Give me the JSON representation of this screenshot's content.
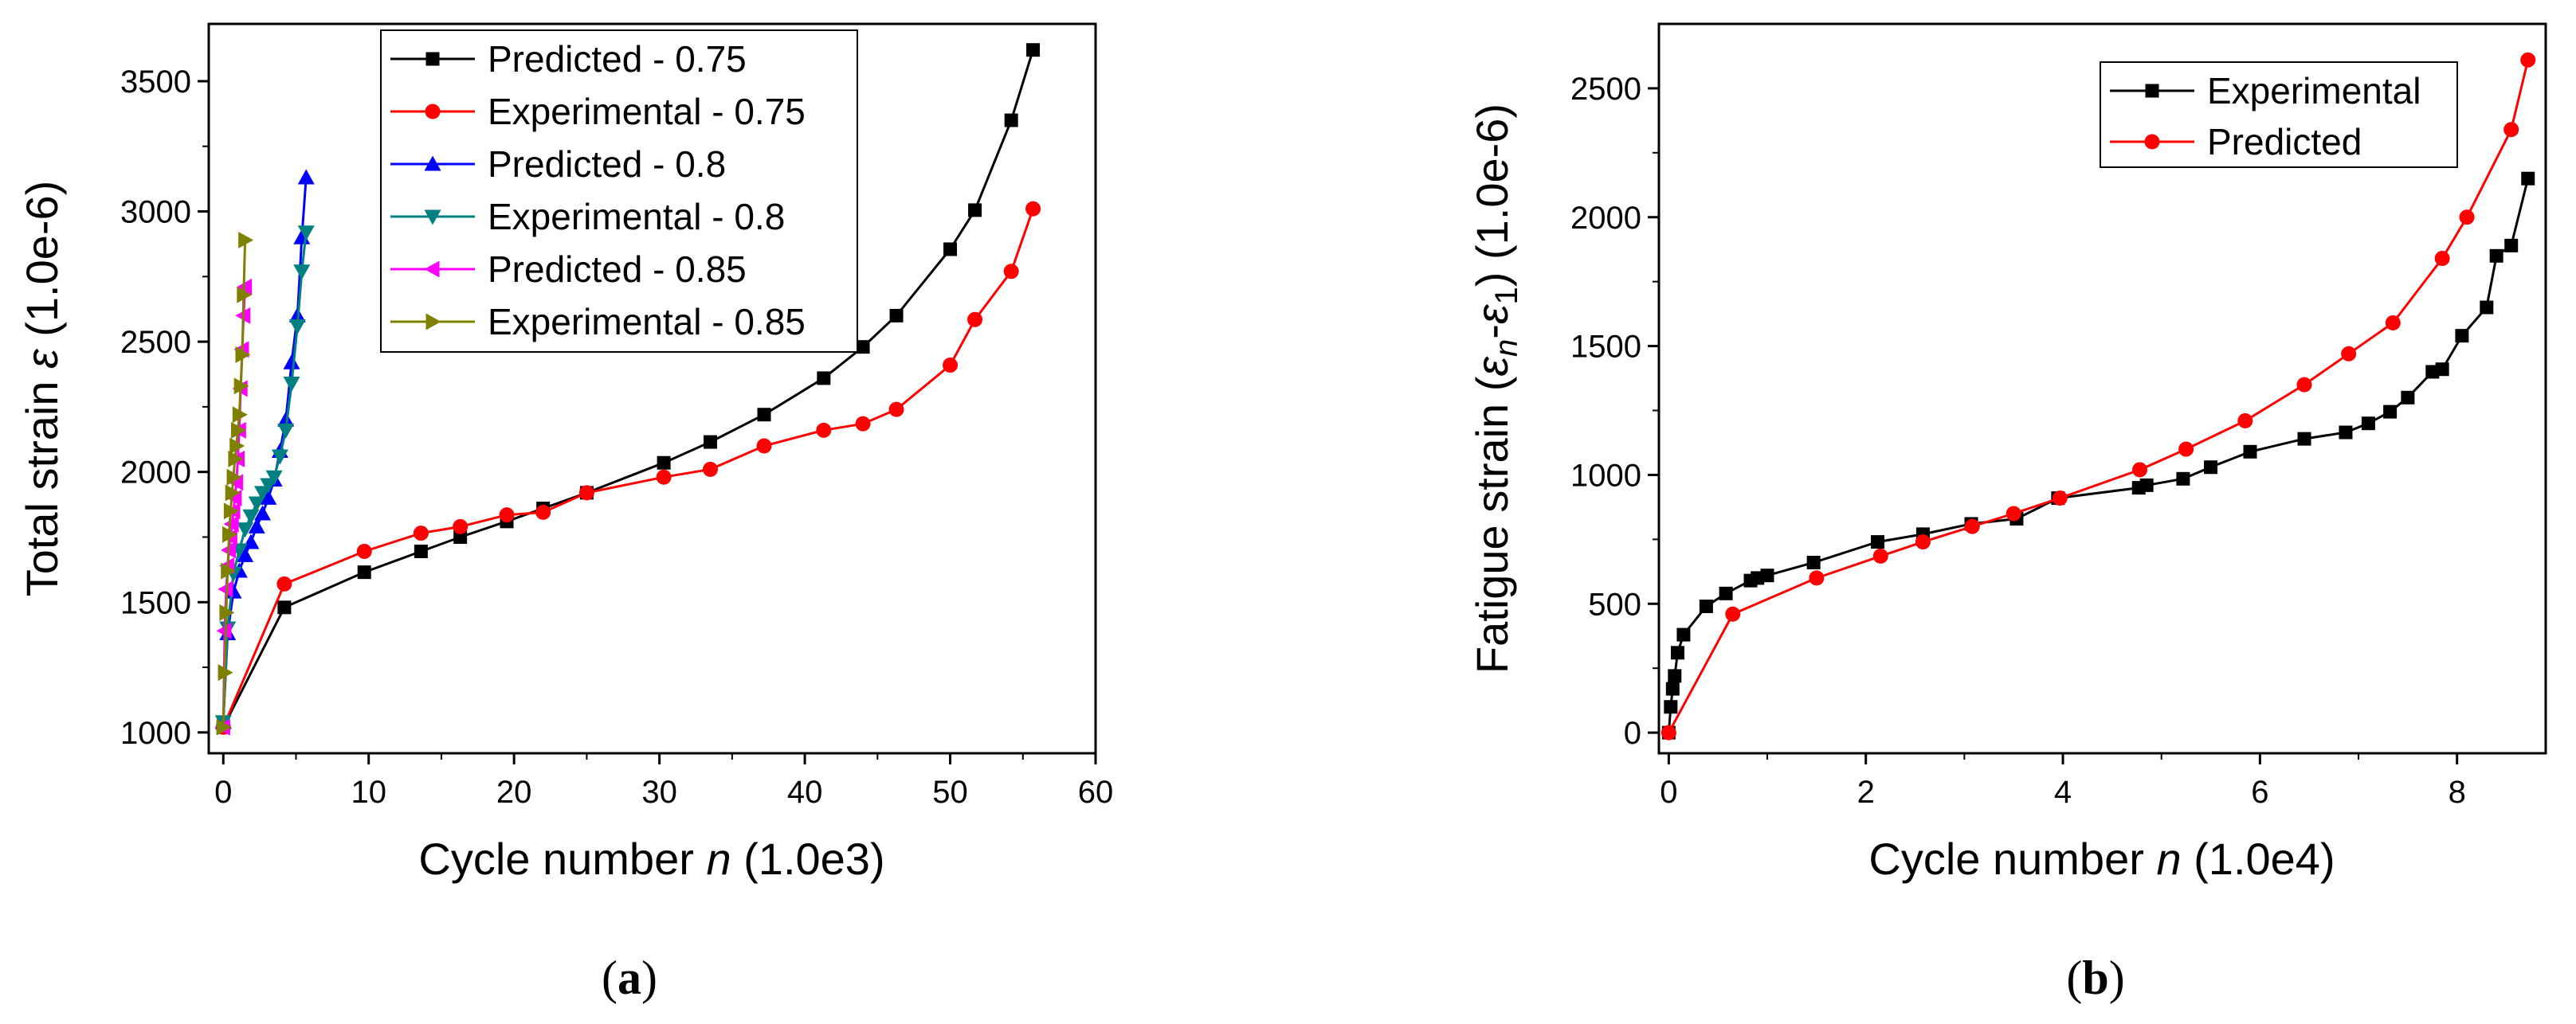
{
  "figure": {
    "panel_a_caption": "(a)",
    "panel_b_caption": "(b)"
  },
  "chart_data": [
    {
      "type": "line",
      "panel": "a",
      "title": "",
      "xlabel": "Cycle number n (1.0e3)",
      "xlabel_parts": {
        "pre": "Cycle number ",
        "var": "n",
        "post": " (1.0e3)"
      },
      "ylabel": "Total strain ε (1.0e-6)",
      "ylabel_parts": {
        "pre": "Total strain ",
        "var": "ε",
        "post": " (1.0e-6)"
      },
      "xlim": [
        -1,
        60
      ],
      "ylim": [
        920,
        3720
      ],
      "xticks": [
        0,
        10,
        20,
        30,
        40,
        50,
        60
      ],
      "xtick_labels": [
        "0",
        "10",
        "20",
        "30",
        "40",
        "50",
        "60"
      ],
      "yticks": [
        1000,
        1500,
        2000,
        2500,
        3000,
        3500
      ],
      "ytick_labels": [
        "1000",
        "1500",
        "2000",
        "2500",
        "3000",
        "3500"
      ],
      "legend_position": "top-center",
      "grid": false,
      "series": [
        {
          "name": "Predicted - 0.75",
          "color": "#000000",
          "marker": "square",
          "x": [
            0,
            4.2,
            9.7,
            13.6,
            16.3,
            19.5,
            22,
            25,
            30.3,
            33.5,
            37.2,
            41.3,
            44,
            46.3,
            50,
            51.7,
            54.2,
            55.7
          ],
          "y": [
            1020,
            1480,
            1615,
            1695,
            1750,
            1810,
            1860,
            1920,
            2035,
            2115,
            2220,
            2360,
            2480,
            2600,
            2855,
            3005,
            3350,
            3620
          ]
        },
        {
          "name": "Experimental - 0.75",
          "color": "#ff0000",
          "marker": "circle",
          "x": [
            0,
            4.2,
            9.7,
            13.6,
            16.3,
            19.5,
            22,
            25,
            30.3,
            33.5,
            37.2,
            41.3,
            44,
            46.3,
            50,
            51.7,
            54.2,
            55.7
          ],
          "y": [
            1020,
            1570,
            1695,
            1765,
            1790,
            1835,
            1845,
            1920,
            1980,
            2010,
            2100,
            2160,
            2185,
            2240,
            2410,
            2585,
            2770,
            3010
          ]
        },
        {
          "name": "Predicted - 0.8",
          "color": "#0000ff",
          "marker": "triangle-up",
          "x": [
            0,
            0.3,
            0.7,
            1.1,
            1.5,
            1.9,
            2.3,
            2.7,
            3.1,
            3.5,
            3.9,
            4.3,
            4.7,
            5.1,
            5.4,
            5.7
          ],
          "y": [
            1040,
            1380,
            1540,
            1620,
            1680,
            1730,
            1790,
            1840,
            1900,
            1970,
            2080,
            2200,
            2420,
            2600,
            2900,
            3130
          ]
        },
        {
          "name": "Experimental - 0.8",
          "color": "#008080",
          "marker": "triangle-down",
          "x": [
            0,
            0.3,
            0.7,
            1.1,
            1.5,
            1.9,
            2.3,
            2.7,
            3.1,
            3.5,
            3.9,
            4.3,
            4.7,
            5.1,
            5.4,
            5.7
          ],
          "y": [
            1040,
            1400,
            1610,
            1700,
            1780,
            1830,
            1880,
            1920,
            1950,
            1980,
            2060,
            2160,
            2340,
            2560,
            2770,
            2920
          ]
        },
        {
          "name": "Predicted - 0.85",
          "color": "#ff00ff",
          "marker": "triangle-left",
          "x": [
            0,
            0.1,
            0.2,
            0.3,
            0.4,
            0.5,
            0.6,
            0.7,
            0.8,
            0.9,
            1.0,
            1.1,
            1.2,
            1.3,
            1.4,
            1.5
          ],
          "y": [
            1020,
            1390,
            1550,
            1640,
            1700,
            1750,
            1800,
            1850,
            1900,
            1960,
            2050,
            2160,
            2320,
            2470,
            2600,
            2710
          ]
        },
        {
          "name": "Experimental - 0.85",
          "color": "#808000",
          "marker": "triangle-right",
          "x": [
            0,
            0.1,
            0.2,
            0.3,
            0.4,
            0.5,
            0.6,
            0.7,
            0.8,
            0.9,
            1.0,
            1.1,
            1.2,
            1.3,
            1.4,
            1.5
          ],
          "y": [
            1020,
            1230,
            1460,
            1620,
            1760,
            1850,
            1920,
            1980,
            2050,
            2100,
            2160,
            2220,
            2330,
            2450,
            2680,
            2890
          ]
        }
      ]
    },
    {
      "type": "line",
      "panel": "b",
      "title": "",
      "xlabel": "Cycle number n (1.0e4)",
      "xlabel_parts": {
        "pre": "Cycle number ",
        "var": "n",
        "post": " (1.0e4)"
      },
      "ylabel": "Fatigue strain (εn-ε1) (1.0e-6)",
      "ylabel_parts": {
        "pre": "Fatigue strain (",
        "var1": "ε",
        "sub1": "n",
        "mid": "-",
        "var2": "ε",
        "sub2": "1",
        "post": ") (1.0e-6)"
      },
      "xlim": [
        -0.1,
        8.9
      ],
      "ylim": [
        -80,
        2750
      ],
      "xticks": [
        0,
        2,
        4,
        6,
        8
      ],
      "xtick_labels": [
        "0",
        "2",
        "4",
        "6",
        "8"
      ],
      "yticks": [
        0,
        500,
        1000,
        1500,
        2000,
        2500
      ],
      "ytick_labels": [
        "0",
        "500",
        "1000",
        "1500",
        "2000",
        "2500"
      ],
      "legend_position": "top-right",
      "grid": false,
      "series": [
        {
          "name": "Experimental",
          "color": "#000000",
          "marker": "square",
          "x": [
            0,
            0.02,
            0.04,
            0.06,
            0.09,
            0.15,
            0.38,
            0.58,
            0.83,
            0.9,
            1.0,
            1.47,
            2.12,
            2.58,
            3.07,
            3.53,
            3.95,
            4.77,
            4.85,
            5.22,
            5.5,
            5.9,
            6.45,
            6.87,
            7.1,
            7.32,
            7.5,
            7.75,
            7.85,
            8.05,
            8.3,
            8.4,
            8.55,
            8.72
          ],
          "y": [
            0,
            100,
            170,
            220,
            310,
            380,
            490,
            540,
            590,
            600,
            610,
            660,
            740,
            770,
            810,
            830,
            910,
            950,
            960,
            985,
            1030,
            1090,
            1140,
            1165,
            1200,
            1245,
            1300,
            1400,
            1410,
            1540,
            1650,
            1850,
            1890,
            2150
          ]
        },
        {
          "name": "Predicted",
          "color": "#ff0000",
          "marker": "circle",
          "x": [
            0,
            0.65,
            1.5,
            2.15,
            2.58,
            3.08,
            3.5,
            3.97,
            4.78,
            5.25,
            5.85,
            6.45,
            6.9,
            7.35,
            7.85,
            8.1,
            8.55,
            8.72
          ],
          "y": [
            0,
            460,
            600,
            685,
            740,
            800,
            850,
            910,
            1020,
            1100,
            1210,
            1350,
            1470,
            1590,
            1840,
            2000,
            2340,
            2610
          ]
        }
      ]
    }
  ]
}
